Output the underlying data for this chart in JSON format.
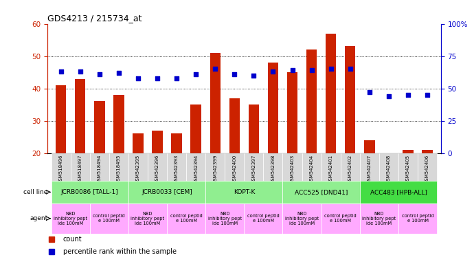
{
  "title": "GDS4213 / 215734_at",
  "samples": [
    "GSM518496",
    "GSM518497",
    "GSM518494",
    "GSM518495",
    "GSM542395",
    "GSM542396",
    "GSM542393",
    "GSM542394",
    "GSM542399",
    "GSM542400",
    "GSM542397",
    "GSM542398",
    "GSM542403",
    "GSM542404",
    "GSM542401",
    "GSM542402",
    "GSM542407",
    "GSM542408",
    "GSM542405",
    "GSM542406"
  ],
  "counts": [
    41,
    43,
    36,
    38,
    26,
    27,
    26,
    35,
    51,
    37,
    35,
    48,
    45,
    52,
    57,
    53,
    24,
    20,
    21,
    21
  ],
  "percentiles": [
    63,
    63,
    61,
    62,
    58,
    58,
    58,
    61,
    65,
    61,
    60,
    63,
    64,
    64,
    65,
    65,
    47,
    44,
    45,
    45
  ],
  "ylim_left": [
    20,
    60
  ],
  "ylim_right": [
    0,
    100
  ],
  "yticks_left": [
    20,
    30,
    40,
    50,
    60
  ],
  "yticks_right": [
    0,
    25,
    50,
    75,
    100
  ],
  "bar_color": "#cc2200",
  "dot_color": "#0000cc",
  "cell_lines": [
    {
      "name": "JCRB0086 [TALL-1]",
      "start": 0,
      "end": 4,
      "color": "#90ee90"
    },
    {
      "name": "JCRB0033 [CEM]",
      "start": 4,
      "end": 8,
      "color": "#90ee90"
    },
    {
      "name": "KOPT-K",
      "start": 8,
      "end": 12,
      "color": "#90ee90"
    },
    {
      "name": "ACC525 [DND41]",
      "start": 12,
      "end": 16,
      "color": "#90ee90"
    },
    {
      "name": "ACC483 [HPB-ALL]",
      "start": 16,
      "end": 20,
      "color": "#44dd44"
    }
  ],
  "agents": [
    {
      "name": "NBD\ninhibitory pept\nide 100mM",
      "start": 0,
      "end": 2,
      "color": "#ffaaff"
    },
    {
      "name": "control peptid\ne 100mM",
      "start": 2,
      "end": 4,
      "color": "#ffaaff"
    },
    {
      "name": "NBD\ninhibitory pept\nide 100mM",
      "start": 4,
      "end": 6,
      "color": "#ffaaff"
    },
    {
      "name": "control peptid\ne 100mM",
      "start": 6,
      "end": 8,
      "color": "#ffaaff"
    },
    {
      "name": "NBD\ninhibitory pept\nide 100mM",
      "start": 8,
      "end": 10,
      "color": "#ffaaff"
    },
    {
      "name": "control peptid\ne 100mM",
      "start": 10,
      "end": 12,
      "color": "#ffaaff"
    },
    {
      "name": "NBD\ninhibitory pept\nide 100mM",
      "start": 12,
      "end": 14,
      "color": "#ffaaff"
    },
    {
      "name": "control peptid\ne 100mM",
      "start": 14,
      "end": 16,
      "color": "#ffaaff"
    },
    {
      "name": "NBD\ninhibitory pept\nide 100mM",
      "start": 16,
      "end": 18,
      "color": "#ffaaff"
    },
    {
      "name": "control peptid\ne 100mM",
      "start": 18,
      "end": 20,
      "color": "#ffaaff"
    }
  ],
  "legend_count_color": "#cc2200",
  "legend_dot_color": "#0000cc",
  "bg_color": "#ffffff",
  "tick_label_bg": "#dddddd"
}
